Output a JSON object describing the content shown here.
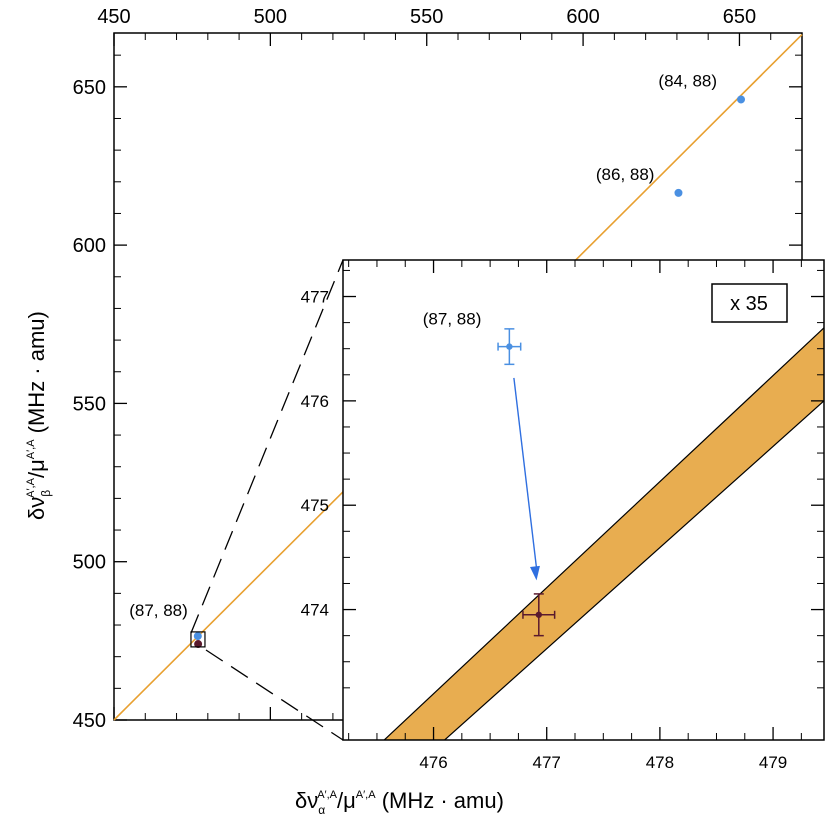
{
  "chart_data": [
    {
      "type": "scatter",
      "name": "main",
      "xlabel": {
        "symbol": "δν",
        "sub": "α",
        "sup": "A′,A",
        "mid": "/μ",
        "sup2": "A′,A",
        "unit": " (MHz · amu)"
      },
      "ylabel": {
        "symbol": "δν",
        "sub": "β",
        "sup": "A′,A",
        "mid": "/μ",
        "sup2": "A′,A",
        "unit": " (MHz · amu)"
      },
      "xlim": [
        450,
        670
      ],
      "ylim": [
        450,
        667
      ],
      "xticks": [
        450,
        500,
        550,
        600,
        650
      ],
      "yticks": [
        450,
        500,
        550,
        600,
        650
      ],
      "fit_line": {
        "x": [
          450,
          670
        ],
        "y": [
          450,
          666.5
        ],
        "color": "#e8a030"
      },
      "points": [
        {
          "label": "(84, 88)",
          "x": 650.5,
          "y": 646,
          "color": "#4a90e2"
        },
        {
          "label": "(86, 88)",
          "x": 630.5,
          "y": 616.5,
          "color": "#4a90e2"
        },
        {
          "label": "(87, 88)",
          "x": 476.8,
          "y": 476.5,
          "color": "#4a90e2"
        },
        {
          "label": "",
          "x": 476.9,
          "y": 474,
          "color": "#5a1a2e"
        }
      ]
    },
    {
      "type": "scatter",
      "name": "inset",
      "magnification": "x 35",
      "xlim": [
        475.2,
        479.45
      ],
      "ylim": [
        472.75,
        477.35
      ],
      "xticks": [
        476,
        477,
        478,
        479
      ],
      "yticks": [
        474,
        475,
        476,
        477
      ],
      "band": {
        "x": [
          475.2,
          479.45
        ],
        "lower": [
          471.88,
          476.0
        ],
        "upper": [
          472.38,
          476.7
        ],
        "color": "#e8ad50"
      },
      "points": [
        {
          "label": "(87, 88)",
          "x": 476.67,
          "y": 476.52,
          "xerr": 0.1,
          "yerr": 0.17,
          "color": "#4a90e2"
        },
        {
          "label": "",
          "x": 476.93,
          "y": 473.95,
          "xerr": 0.14,
          "yerr": 0.2,
          "color": "#5a1a2e"
        }
      ],
      "arrow": {
        "from": [
          476.71,
          476.22
        ],
        "to": [
          476.91,
          474.28
        ],
        "color": "#2f6fe0"
      }
    }
  ]
}
